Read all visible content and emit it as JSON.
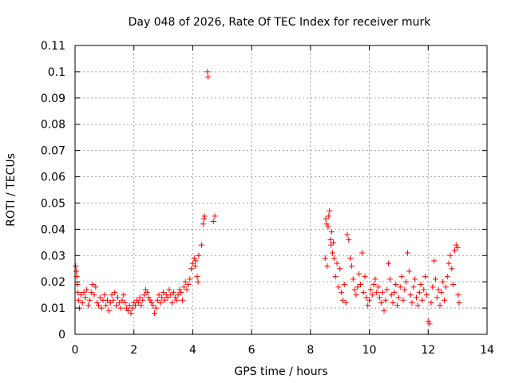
{
  "chart_data": {
    "type": "scatter",
    "title": "Day 048 of 2026, Rate Of TEC Index for receiver murk",
    "xlabel": "GPS time / hours",
    "ylabel": "ROTI / TECUs",
    "xlim": [
      0,
      14
    ],
    "ylim": [
      0,
      0.11
    ],
    "x_ticks": [
      0,
      2,
      4,
      6,
      8,
      10,
      12,
      14
    ],
    "y_ticks": [
      0,
      0.01,
      0.02,
      0.03,
      0.04,
      0.05,
      0.06,
      0.07,
      0.08,
      0.09,
      0.1,
      0.11
    ],
    "grid": true,
    "marker": "+",
    "color": "#ff0000",
    "series": [
      {
        "name": "ROTI",
        "points": [
          [
            0.02,
            0.026
          ],
          [
            0.04,
            0.024
          ],
          [
            0.06,
            0.022
          ],
          [
            0.08,
            0.019
          ],
          [
            0.1,
            0.016
          ],
          [
            0.12,
            0.013
          ],
          [
            0.15,
            0.01
          ],
          [
            0.2,
            0.015
          ],
          [
            0.25,
            0.012
          ],
          [
            0.3,
            0.016
          ],
          [
            0.35,
            0.014
          ],
          [
            0.4,
            0.017
          ],
          [
            0.45,
            0.011
          ],
          [
            0.5,
            0.013
          ],
          [
            0.55,
            0.016
          ],
          [
            0.6,
            0.019
          ],
          [
            0.65,
            0.015
          ],
          [
            0.7,
            0.018
          ],
          [
            0.75,
            0.012
          ],
          [
            0.8,
            0.011
          ],
          [
            0.85,
            0.014
          ],
          [
            0.9,
            0.01
          ],
          [
            0.95,
            0.013
          ],
          [
            1.0,
            0.015
          ],
          [
            1.05,
            0.011
          ],
          [
            1.1,
            0.013
          ],
          [
            1.15,
            0.009
          ],
          [
            1.2,
            0.012
          ],
          [
            1.25,
            0.015
          ],
          [
            1.3,
            0.013
          ],
          [
            1.35,
            0.016
          ],
          [
            1.4,
            0.011
          ],
          [
            1.45,
            0.014
          ],
          [
            1.5,
            0.012
          ],
          [
            1.55,
            0.01
          ],
          [
            1.6,
            0.013
          ],
          [
            1.65,
            0.015
          ],
          [
            1.7,
            0.012
          ],
          [
            1.75,
            0.01
          ],
          [
            1.8,
            0.009
          ],
          [
            1.85,
            0.011
          ],
          [
            1.9,
            0.008
          ],
          [
            1.95,
            0.01
          ],
          [
            2.0,
            0.012
          ],
          [
            2.05,
            0.011
          ],
          [
            2.1,
            0.013
          ],
          [
            2.15,
            0.012
          ],
          [
            2.2,
            0.014
          ],
          [
            2.25,
            0.011
          ],
          [
            2.3,
            0.013
          ],
          [
            2.35,
            0.015
          ],
          [
            2.4,
            0.017
          ],
          [
            2.45,
            0.016
          ],
          [
            2.5,
            0.014
          ],
          [
            2.55,
            0.013
          ],
          [
            2.6,
            0.012
          ],
          [
            2.65,
            0.011
          ],
          [
            2.7,
            0.008
          ],
          [
            2.75,
            0.01
          ],
          [
            2.8,
            0.013
          ],
          [
            2.85,
            0.015
          ],
          [
            2.9,
            0.012
          ],
          [
            2.95,
            0.014
          ],
          [
            3.0,
            0.016
          ],
          [
            3.05,
            0.013
          ],
          [
            3.1,
            0.015
          ],
          [
            3.15,
            0.014
          ],
          [
            3.2,
            0.017
          ],
          [
            3.25,
            0.015
          ],
          [
            3.3,
            0.012
          ],
          [
            3.35,
            0.016
          ],
          [
            3.4,
            0.014
          ],
          [
            3.45,
            0.013
          ],
          [
            3.5,
            0.015
          ],
          [
            3.55,
            0.017
          ],
          [
            3.6,
            0.016
          ],
          [
            3.65,
            0.013
          ],
          [
            3.7,
            0.018
          ],
          [
            3.75,
            0.02
          ],
          [
            3.8,
            0.017
          ],
          [
            3.85,
            0.019
          ],
          [
            3.9,
            0.021
          ],
          [
            3.95,
            0.025
          ],
          [
            4.0,
            0.027
          ],
          [
            4.05,
            0.029
          ],
          [
            4.08,
            0.026
          ],
          [
            4.1,
            0.028
          ],
          [
            4.15,
            0.022
          ],
          [
            4.18,
            0.02
          ],
          [
            4.2,
            0.03
          ],
          [
            4.3,
            0.034
          ],
          [
            4.35,
            0.042
          ],
          [
            4.38,
            0.044
          ],
          [
            4.4,
            0.045
          ],
          [
            4.5,
            0.1
          ],
          [
            4.52,
            0.098
          ],
          [
            4.7,
            0.043
          ],
          [
            4.75,
            0.045
          ],
          [
            8.5,
            0.029
          ],
          [
            8.52,
            0.044
          ],
          [
            8.55,
            0.042
          ],
          [
            8.57,
            0.026
          ],
          [
            8.6,
            0.041
          ],
          [
            8.62,
            0.045
          ],
          [
            8.65,
            0.047
          ],
          [
            8.68,
            0.036
          ],
          [
            8.7,
            0.034
          ],
          [
            8.72,
            0.039
          ],
          [
            8.75,
            0.031
          ],
          [
            8.78,
            0.035
          ],
          [
            8.8,
            0.029
          ],
          [
            8.85,
            0.022
          ],
          [
            8.9,
            0.027
          ],
          [
            8.95,
            0.018
          ],
          [
            9.0,
            0.025
          ],
          [
            9.05,
            0.016
          ],
          [
            9.1,
            0.013
          ],
          [
            9.15,
            0.019
          ],
          [
            9.2,
            0.012
          ],
          [
            9.25,
            0.038
          ],
          [
            9.3,
            0.036
          ],
          [
            9.35,
            0.029
          ],
          [
            9.4,
            0.026
          ],
          [
            9.45,
            0.021
          ],
          [
            9.5,
            0.017
          ],
          [
            9.55,
            0.015
          ],
          [
            9.6,
            0.018
          ],
          [
            9.65,
            0.023
          ],
          [
            9.7,
            0.019
          ],
          [
            9.75,
            0.031
          ],
          [
            9.8,
            0.016
          ],
          [
            9.85,
            0.022
          ],
          [
            9.9,
            0.014
          ],
          [
            9.95,
            0.011
          ],
          [
            10.0,
            0.013
          ],
          [
            10.05,
            0.017
          ],
          [
            10.1,
            0.015
          ],
          [
            10.15,
            0.019
          ],
          [
            10.2,
            0.021
          ],
          [
            10.25,
            0.016
          ],
          [
            10.3,
            0.018
          ],
          [
            10.35,
            0.014
          ],
          [
            10.4,
            0.012
          ],
          [
            10.45,
            0.016
          ],
          [
            10.5,
            0.009
          ],
          [
            10.55,
            0.013
          ],
          [
            10.6,
            0.017
          ],
          [
            10.65,
            0.027
          ],
          [
            10.7,
            0.021
          ],
          [
            10.75,
            0.015
          ],
          [
            10.8,
            0.012
          ],
          [
            10.85,
            0.016
          ],
          [
            10.9,
            0.019
          ],
          [
            10.95,
            0.011
          ],
          [
            11.0,
            0.014
          ],
          [
            11.05,
            0.018
          ],
          [
            11.1,
            0.022
          ],
          [
            11.15,
            0.013
          ],
          [
            11.2,
            0.017
          ],
          [
            11.25,
            0.02
          ],
          [
            11.3,
            0.031
          ],
          [
            11.35,
            0.024
          ],
          [
            11.4,
            0.015
          ],
          [
            11.45,
            0.012
          ],
          [
            11.5,
            0.018
          ],
          [
            11.55,
            0.021
          ],
          [
            11.6,
            0.014
          ],
          [
            11.65,
            0.011
          ],
          [
            11.7,
            0.016
          ],
          [
            11.75,
            0.019
          ],
          [
            11.8,
            0.013
          ],
          [
            11.85,
            0.017
          ],
          [
            11.9,
            0.022
          ],
          [
            11.95,
            0.015
          ],
          [
            12.0,
            0.005
          ],
          [
            12.05,
            0.004
          ],
          [
            12.1,
            0.012
          ],
          [
            12.15,
            0.018
          ],
          [
            12.2,
            0.028
          ],
          [
            12.25,
            0.021
          ],
          [
            12.3,
            0.014
          ],
          [
            12.35,
            0.017
          ],
          [
            12.4,
            0.011
          ],
          [
            12.45,
            0.016
          ],
          [
            12.5,
            0.02
          ],
          [
            12.55,
            0.013
          ],
          [
            12.6,
            0.018
          ],
          [
            12.65,
            0.022
          ],
          [
            12.7,
            0.027
          ],
          [
            12.75,
            0.03
          ],
          [
            12.8,
            0.025
          ],
          [
            12.85,
            0.019
          ],
          [
            12.9,
            0.032
          ],
          [
            12.95,
            0.034
          ],
          [
            13.0,
            0.033
          ],
          [
            13.02,
            0.015
          ],
          [
            13.05,
            0.012
          ]
        ]
      }
    ]
  }
}
